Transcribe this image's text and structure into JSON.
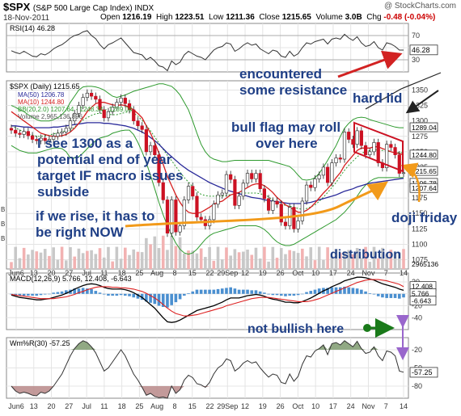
{
  "header": {
    "symbol": "$SPX",
    "name": "(S&P 500 Large Cap Index) INDX",
    "credit": "@ StockCharts.com",
    "date": "18-Nov-2011",
    "open_label": "Open",
    "open": "1216.19",
    "high_label": "High",
    "high": "1223.51",
    "low_label": "Low",
    "low": "1211.36",
    "close_label": "Close",
    "close": "1215.65",
    "volume_label": "Volume",
    "volume": "3.0B",
    "chg_label": "Chg",
    "chg": "-0.48 (-0.04%)"
  },
  "colors": {
    "up": "#ffffff",
    "down": "#cc1122",
    "ma50": "#2a2a9a",
    "ma10": "#d61f1f",
    "bb": "#2e9a2e",
    "vol": "#c8c8c8",
    "volred": "#f2b2b2",
    "macd": "#000000",
    "signal": "#dd2222",
    "hist": "#4a8fd0",
    "annotation": "#1f3f86",
    "arrow_red": "#d22222",
    "arrow_orange": "#f29a1a",
    "arrow_green": "#1a7a1a",
    "arrow_purple": "#9966cc"
  },
  "chart_data": {
    "type": "candlestick",
    "symbol": "$SPX",
    "x_ticks": [
      "Jun6",
      "13",
      "20",
      "27",
      "Jul",
      "11",
      "18",
      "25",
      "Aug",
      "8",
      "15",
      "22",
      "29Sep",
      "12",
      "19",
      "26",
      "Oct",
      "10",
      "17",
      "24",
      "Nov",
      "7",
      "14"
    ],
    "price": {
      "legend": {
        "price": "$SPX (Daily) 1215.65",
        "ma50": "MA(50) 1206.78",
        "ma10": "MA(10) 1244.80",
        "bb": "BB(20,2.0) 1207.64 - 1248.34 - 1289.04",
        "volume": "Volume 2,965,136,896"
      },
      "yticks": [
        1350,
        1325,
        1300,
        1275,
        1250,
        1225,
        1200,
        1175,
        1150,
        1125,
        1100,
        1075
      ],
      "ylim": [
        1060,
        1365
      ],
      "last_value_tags": [
        "1289.04",
        "1244.80",
        "1215.65",
        "1206.78",
        "1207.64"
      ],
      "volume_tag": "2965136",
      "closes": [
        1285,
        1280,
        1278,
        1283,
        1276,
        1270,
        1268,
        1272,
        1268,
        1270,
        1275,
        1280,
        1282,
        1288,
        1300,
        1312,
        1325,
        1338,
        1345,
        1340,
        1335,
        1318,
        1305,
        1315,
        1322,
        1330,
        1337,
        1328,
        1318,
        1300,
        1292,
        1286,
        1250,
        1260,
        1245,
        1200,
        1172,
        1118,
        1172,
        1120,
        1130,
        1172,
        1194,
        1178,
        1144,
        1140,
        1130,
        1140,
        1165,
        1180,
        1183,
        1213,
        1205,
        1163,
        1178,
        1199,
        1215,
        1206,
        1215,
        1190,
        1174,
        1155,
        1170,
        1165,
        1136,
        1130,
        1160,
        1125,
        1138,
        1170,
        1196,
        1192,
        1206,
        1212,
        1225,
        1200,
        1232,
        1240,
        1238,
        1282,
        1270,
        1262,
        1284,
        1260,
        1245,
        1250,
        1265,
        1232,
        1224,
        1262,
        1257,
        1245,
        1215,
        1216
      ],
      "ma50": [
        1292,
        1292,
        1291,
        1290,
        1290,
        1289,
        1289,
        1289,
        1289,
        1289,
        1290,
        1290,
        1291,
        1292,
        1293,
        1294,
        1295,
        1296,
        1297,
        1297,
        1297,
        1297,
        1296,
        1296,
        1295,
        1294,
        1293,
        1292,
        1290,
        1288,
        1285,
        1282,
        1278,
        1273,
        1268,
        1262,
        1255,
        1248,
        1242,
        1236,
        1230,
        1225,
        1220,
        1216,
        1212,
        1208,
        1204,
        1200,
        1197,
        1194,
        1191,
        1188,
        1186,
        1184,
        1182,
        1180,
        1178,
        1176,
        1175,
        1174,
        1172,
        1171,
        1170,
        1169,
        1168,
        1167,
        1166,
        1166,
        1166,
        1166,
        1167,
        1168,
        1170,
        1172,
        1174,
        1176,
        1178,
        1180,
        1183,
        1186,
        1188,
        1190,
        1193,
        1195,
        1197,
        1199,
        1200,
        1201,
        1202,
        1203,
        1204,
        1205,
        1206,
        1207
      ],
      "ma10": [
        1315,
        1310,
        1305,
        1300,
        1295,
        1290,
        1285,
        1280,
        1278,
        1276,
        1275,
        1275,
        1276,
        1278,
        1282,
        1288,
        1296,
        1305,
        1315,
        1322,
        1328,
        1330,
        1330,
        1328,
        1326,
        1325,
        1326,
        1325,
        1322,
        1318,
        1312,
        1305,
        1292,
        1280,
        1265,
        1248,
        1230,
        1210,
        1195,
        1180,
        1168,
        1158,
        1152,
        1150,
        1150,
        1152,
        1156,
        1160,
        1165,
        1168,
        1170,
        1175,
        1180,
        1182,
        1184,
        1188,
        1192,
        1196,
        1198,
        1198,
        1195,
        1190,
        1184,
        1176,
        1170,
        1164,
        1160,
        1156,
        1152,
        1152,
        1155,
        1160,
        1167,
        1175,
        1183,
        1190,
        1198,
        1208,
        1216,
        1228,
        1236,
        1244,
        1252,
        1256,
        1256,
        1256,
        1258,
        1258,
        1255,
        1253,
        1250,
        1248,
        1247,
        1245
      ],
      "bb_upper": [
        1325,
        1322,
        1318,
        1315,
        1310,
        1306,
        1302,
        1300,
        1300,
        1300,
        1302,
        1305,
        1310,
        1318,
        1330,
        1340,
        1350,
        1355,
        1356,
        1356,
        1355,
        1353,
        1350,
        1345,
        1340,
        1338,
        1340,
        1342,
        1345,
        1348,
        1350,
        1352,
        1354,
        1356,
        1358,
        1360,
        1360,
        1358,
        1356,
        1350,
        1342,
        1330,
        1318,
        1300,
        1280,
        1262,
        1250,
        1242,
        1238,
        1236,
        1234,
        1234,
        1235,
        1236,
        1236,
        1236,
        1236,
        1236,
        1236,
        1236,
        1236,
        1236,
        1234,
        1232,
        1230,
        1228,
        1226,
        1220,
        1212,
        1205,
        1204,
        1205,
        1208,
        1215,
        1225,
        1236,
        1248,
        1260,
        1275,
        1288,
        1296,
        1302,
        1305,
        1306,
        1305,
        1302,
        1300,
        1298,
        1296,
        1294,
        1292,
        1290,
        1289,
        1289
      ],
      "bb_lower": [
        1260,
        1256,
        1252,
        1250,
        1248,
        1248,
        1248,
        1250,
        1252,
        1254,
        1256,
        1256,
        1255,
        1250,
        1240,
        1240,
        1242,
        1248,
        1255,
        1262,
        1268,
        1272,
        1274,
        1276,
        1280,
        1282,
        1284,
        1285,
        1285,
        1278,
        1265,
        1250,
        1232,
        1212,
        1190,
        1168,
        1148,
        1130,
        1115,
        1102,
        1092,
        1086,
        1084,
        1086,
        1092,
        1100,
        1108,
        1114,
        1118,
        1120,
        1122,
        1124,
        1126,
        1128,
        1130,
        1130,
        1130,
        1130,
        1130,
        1128,
        1124,
        1118,
        1110,
        1104,
        1100,
        1098,
        1098,
        1100,
        1104,
        1108,
        1112,
        1116,
        1120,
        1124,
        1128,
        1132,
        1136,
        1140,
        1146,
        1152,
        1160,
        1168,
        1178,
        1188,
        1196,
        1202,
        1206,
        1208,
        1208,
        1208,
        1208,
        1208,
        1208,
        1208
      ],
      "volume_bars": "daily, gray/red; highest in early August"
    },
    "rsi": {
      "label": "RSI(14) 46.28",
      "ticks": [
        70,
        50,
        30
      ],
      "last_tag": "46.28",
      "ylim": [
        10,
        90
      ],
      "values": [
        45,
        42,
        40,
        44,
        40,
        36,
        35,
        40,
        38,
        42,
        48,
        52,
        55,
        60,
        66,
        70,
        72,
        76,
        78,
        70,
        65,
        55,
        48,
        55,
        58,
        62,
        66,
        58,
        50,
        42,
        40,
        38,
        30,
        34,
        28,
        20,
        18,
        12,
        28,
        22,
        26,
        38,
        44,
        40,
        36,
        34,
        30,
        38,
        46,
        50,
        52,
        58,
        56,
        44,
        48,
        54,
        58,
        54,
        56,
        48,
        44,
        40,
        46,
        44,
        36,
        34,
        44,
        36,
        40,
        50,
        58,
        56,
        60,
        62,
        64,
        56,
        64,
        66,
        64,
        72,
        66,
        62,
        68,
        58,
        52,
        54,
        60,
        50,
        46,
        58,
        56,
        52,
        46,
        46
      ]
    },
    "macd": {
      "label": "MACD(12,26,9) 5.766, 12.408, -6.643",
      "ticks": [
        20,
        0,
        -20,
        -40
      ],
      "last_tags": [
        "12.408",
        "5.766",
        "-6.643"
      ],
      "ylim": [
        -60,
        35
      ],
      "macd": [
        -2,
        -4,
        -6,
        -7,
        -8,
        -9,
        -10,
        -10,
        -9,
        -8,
        -6,
        -4,
        -2,
        1,
        4,
        8,
        11,
        14,
        16,
        17,
        16,
        14,
        11,
        9,
        8,
        8,
        8,
        7,
        5,
        2,
        -2,
        -6,
        -12,
        -18,
        -24,
        -32,
        -40,
        -47,
        -48,
        -47,
        -44,
        -40,
        -36,
        -32,
        -28,
        -26,
        -24,
        -22,
        -20,
        -17,
        -14,
        -10,
        -7,
        -7,
        -7,
        -5,
        -3,
        -2,
        -1,
        -2,
        -4,
        -7,
        -9,
        -10,
        -12,
        -14,
        -14,
        -15,
        -15,
        -13,
        -10,
        -7,
        -3,
        1,
        5,
        8,
        12,
        15,
        18,
        22,
        24,
        26,
        28,
        28,
        27,
        25,
        23,
        20,
        17,
        15,
        13,
        11,
        8,
        6
      ],
      "signal": [
        -1,
        -2,
        -3,
        -4,
        -5,
        -6,
        -7,
        -8,
        -8,
        -8,
        -8,
        -7,
        -6,
        -5,
        -3,
        -1,
        2,
        4,
        7,
        9,
        11,
        12,
        12,
        12,
        11,
        11,
        10,
        10,
        9,
        8,
        6,
        4,
        1,
        -3,
        -7,
        -12,
        -18,
        -24,
        -29,
        -33,
        -35,
        -37,
        -37,
        -36,
        -35,
        -33,
        -31,
        -29,
        -27,
        -25,
        -23,
        -20,
        -18,
        -16,
        -14,
        -12,
        -10,
        -8,
        -7,
        -6,
        -6,
        -6,
        -7,
        -8,
        -9,
        -10,
        -11,
        -12,
        -13,
        -13,
        -13,
        -12,
        -10,
        -8,
        -5,
        -2,
        1,
        4,
        7,
        10,
        13,
        16,
        19,
        21,
        23,
        24,
        24,
        24,
        23,
        22,
        20,
        18,
        16,
        12
      ]
    },
    "williams": {
      "label": "Wm%R(30) -57.25",
      "ticks": [
        -20,
        -50,
        -80
      ],
      "last_tag": "-57.25",
      "ylim": [
        -100,
        0
      ],
      "values": [
        -80,
        -88,
        -92,
        -90,
        -92,
        -95,
        -96,
        -90,
        -92,
        -88,
        -80,
        -70,
        -60,
        -45,
        -30,
        -18,
        -10,
        -5,
        -8,
        -15,
        -25,
        -40,
        -55,
        -50,
        -40,
        -30,
        -20,
        -30,
        -45,
        -60,
        -70,
        -82,
        -95,
        -92,
        -97,
        -99,
        -98,
        -100,
        -80,
        -92,
        -86,
        -70,
        -62,
        -66,
        -76,
        -78,
        -82,
        -74,
        -60,
        -50,
        -45,
        -35,
        -38,
        -55,
        -50,
        -42,
        -38,
        -42,
        -40,
        -50,
        -58,
        -65,
        -60,
        -62,
        -74,
        -76,
        -60,
        -72,
        -64,
        -44,
        -30,
        -32,
        -22,
        -18,
        -12,
        -28,
        -10,
        -8,
        -12,
        -5,
        -10,
        -15,
        -6,
        -18,
        -26,
        -24,
        -15,
        -30,
        -38,
        -22,
        -24,
        -30,
        -55,
        -57
      ]
    },
    "volume_side_labels": [
      "B",
      "B",
      "B"
    ]
  },
  "annotations": {
    "resistance_1": "encountered",
    "resistance_2": "some resistance",
    "hard_lid": "hard lid",
    "bull_flag_1": "bull flag may roll",
    "bull_flag_2": "over here",
    "target_1": "I see 1300 as a",
    "target_2": "potential end of year",
    "target_3": "target IF macro issues",
    "target_4": "subside",
    "rise_1": "if we rise, it has to",
    "rise_2": "be right NOW",
    "doji": "doji friday",
    "distribution": "distribution",
    "not_bullish": "not bullish here"
  }
}
